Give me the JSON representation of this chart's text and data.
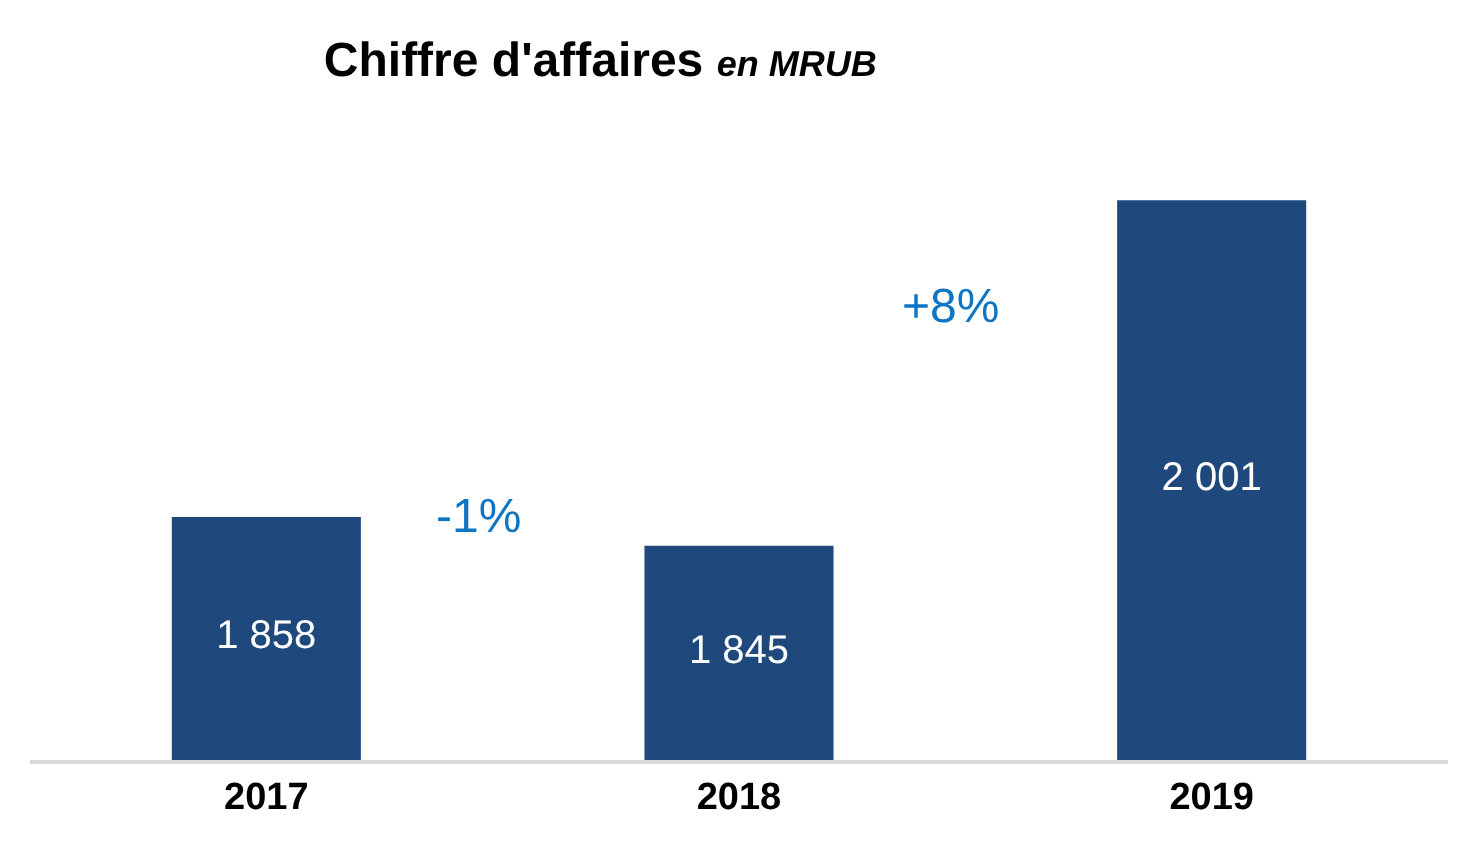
{
  "chart_data": {
    "type": "bar",
    "title": "Chiffre d'affaires",
    "subtitle": "en MRUB",
    "categories": [
      "2017",
      "2018",
      "2019"
    ],
    "values": [
      1858,
      1845,
      2001
    ],
    "value_labels": [
      "1 858",
      "1 845",
      "2 001"
    ],
    "color": "#1f497d",
    "tick_labels": "x",
    "annotations": [
      "-1%",
      "+8%"
    ]
  }
}
